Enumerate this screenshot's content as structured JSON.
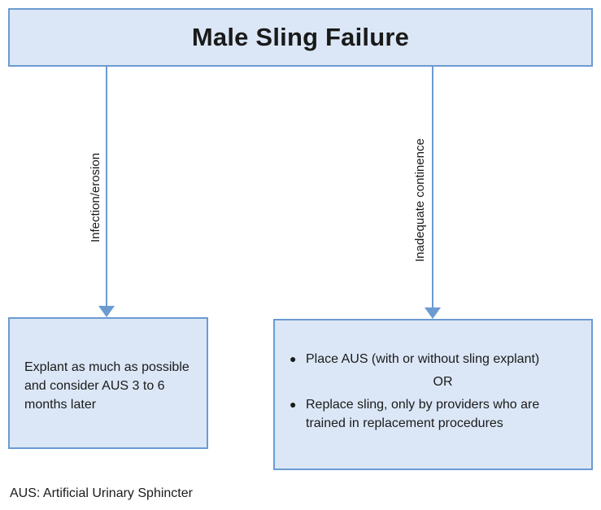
{
  "title": "Male Sling Failure",
  "branches": {
    "left": {
      "label": "Infection/erosion",
      "text": "Explant as much as possible and consider AUS 3 to 6 months later"
    },
    "right": {
      "label": "Inadequate continence",
      "bullet1": "Place AUS (with or without sling explant)",
      "or": "OR",
      "bullet2": "Replace sling, only by providers who are trained in replacement procedures"
    }
  },
  "footnote": "AUS: Artificial Urinary Sphincter",
  "colors": {
    "box_fill": "#dbe7f6",
    "box_border": "#6b9bd1",
    "arrow": "#6b9bd1"
  }
}
